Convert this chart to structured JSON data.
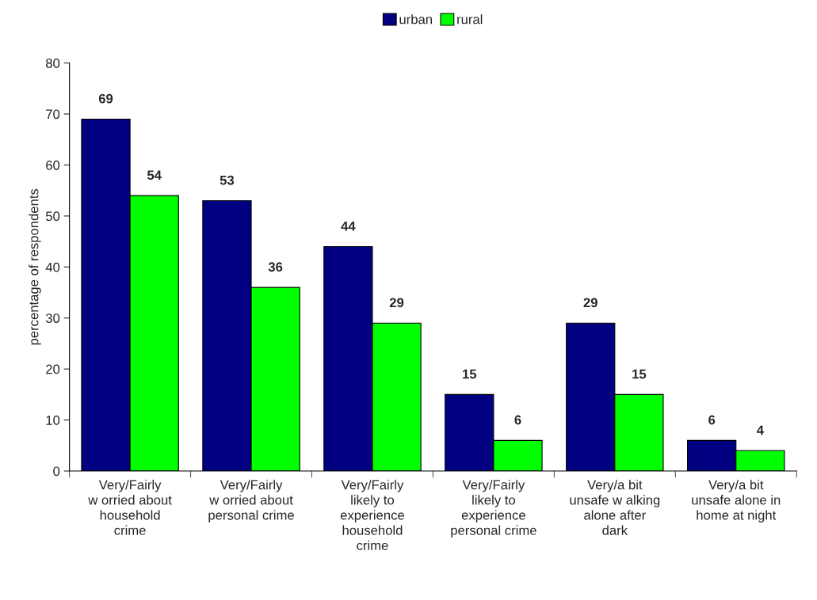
{
  "chart_data": {
    "type": "bar",
    "ylabel": "percentage of respondents",
    "categories": [
      "Very/Fairly\nw orried about\nhousehold\ncrime",
      "Very/Fairly\nw orried about\npersonal crime",
      "Very/Fairly\nlikely to\nexperience\nhousehold\ncrime",
      "Very/Fairly\nlikely to\nexperience\npersonal crime",
      "Very/a bit\nunsafe w alking\nalone after\ndark",
      "Very/a bit\nunsafe alone in\nhome at night"
    ],
    "series": [
      {
        "name": "urban",
        "color": "#000080",
        "values": [
          69,
          53,
          44,
          15,
          29,
          6
        ]
      },
      {
        "name": "rural",
        "color": "#00ff00",
        "values": [
          54,
          36,
          29,
          6,
          15,
          4
        ]
      }
    ],
    "ylim": [
      0,
      80
    ],
    "yticks": [
      0,
      10,
      20,
      30,
      40,
      50,
      60,
      70,
      80
    ],
    "data_labels": true,
    "grid": false,
    "legend": "top"
  }
}
